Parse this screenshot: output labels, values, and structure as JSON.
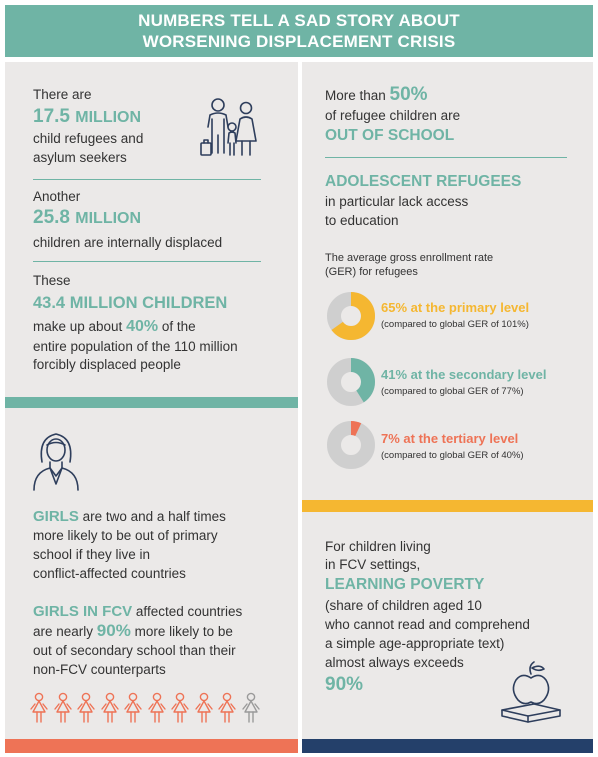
{
  "banner": {
    "title_line1": "NUMBERS TELL A SAD STORY ABOUT",
    "title_line2": "WORSENING DISPLACEMENT CRISIS"
  },
  "refugees": {
    "intro": "There are",
    "number": "17.5",
    "unit": "MILLION",
    "desc_line1": "child refugees and",
    "desc_line2": "asylum seekers"
  },
  "internal": {
    "intro": "Another",
    "number": "25.8",
    "unit": "MILLION",
    "desc": "children are internally displaced"
  },
  "total": {
    "intro": "These",
    "headline": "43.4 MILLION CHILDREN",
    "line1_pre": "make up about ",
    "line1_pct": "40%",
    "line1_post": " of the",
    "line2": "entire population of the 110 million",
    "line3": "forcibly displaced people"
  },
  "school": {
    "pre": "More than ",
    "pct": "50%",
    "line2": "of refugee children are",
    "line3": "OUT OF SCHOOL"
  },
  "adolescent": {
    "heading": "ADOLESCENT REFUGEES",
    "line1": "in particular lack access",
    "line2": "to education"
  },
  "ger": {
    "intro_line1": "The average gross enrollment rate",
    "intro_line2": "(GER) for refugees",
    "levels": [
      {
        "label": "65% at the primary level",
        "compare": "(compared to global GER of 101%)",
        "value": 65,
        "color": "#f5b731"
      },
      {
        "label": "41% at the secondary level",
        "compare": "(compared to global GER of 77%)",
        "value": 41,
        "color": "#6fb4a5"
      },
      {
        "label": "7% at the tertiary level",
        "compare": "(compared to global GER of 40%)",
        "value": 7,
        "color": "#ee7356"
      }
    ],
    "track_color": "#cfcfcf"
  },
  "girls": {
    "p1_bold": "GIRLS",
    "p1_rest": " are two and a half times",
    "p1_line2": "more likely to be out of primary",
    "p1_line3": "school if they live in",
    "p1_line4": "conflict-affected countries",
    "p2_bold": "GIRLS IN FCV",
    "p2_rest": " affected countries",
    "p2_line2_pre": "are nearly ",
    "p2_line2_pct": "90%",
    "p2_line2_post": " more likely to be",
    "p2_line3": "out of secondary school than their",
    "p2_line4": "non-FCV counterparts",
    "figures_highlighted": 9,
    "figures_total": 10,
    "figure_color": "#ee7356",
    "figure_dim_color": "#9a9a9a"
  },
  "learning": {
    "line1": "For children living",
    "line2": "in FCV settings,",
    "heading": "LEARNING POVERTY",
    "line3": "(share of children aged 10",
    "line4": "who cannot read and comprehend",
    "line5": "a simple age-appropriate text)",
    "line6": "almost always exceeds",
    "pct": "90%"
  },
  "colors": {
    "teal": "#6fb4a5",
    "yellow": "#f5b731",
    "coral": "#ee7356",
    "navy": "#24406a",
    "panel": "#ebe9e8"
  }
}
